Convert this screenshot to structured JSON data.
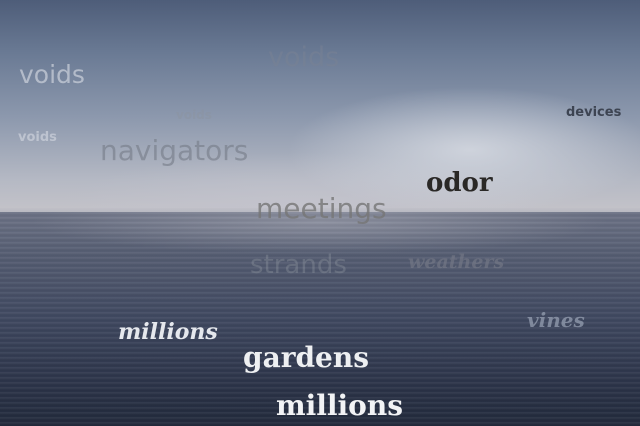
{
  "words": [
    "voids",
    "voids",
    "voids",
    "voids",
    "navigators",
    "devices",
    "odor",
    "meetings",
    "strands",
    "weathers",
    "vines",
    "millions",
    "gardens",
    "millions"
  ],
  "colors": {
    "sky_top": "#4e5d79",
    "sky_horizon": "#c4c3c9",
    "sea_top": "#6d7386",
    "sea_bottom": "#222a3c"
  }
}
